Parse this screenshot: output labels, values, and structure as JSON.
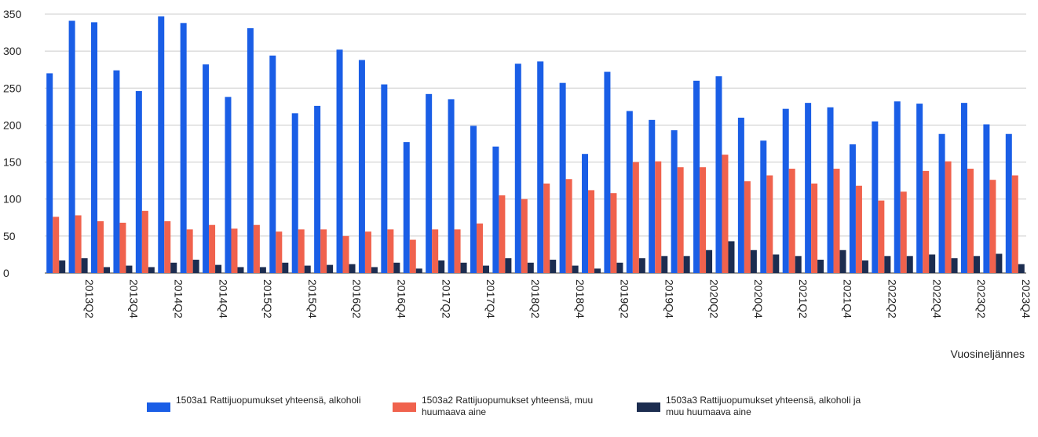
{
  "chart_data": {
    "type": "bar",
    "x_label": "Vuosineljännes",
    "categories": [
      null,
      "2013Q2",
      null,
      "2013Q4",
      null,
      "2014Q2",
      null,
      "2014Q4",
      null,
      "2015Q2",
      null,
      "2015Q4",
      null,
      "2016Q2",
      null,
      "2016Q4",
      null,
      "2017Q2",
      null,
      "2017Q4",
      null,
      "2018Q2",
      null,
      "2018Q4",
      null,
      "2019Q2",
      null,
      "2019Q4",
      null,
      "2020Q2",
      null,
      "2020Q4",
      null,
      "2021Q2",
      null,
      "2021Q4",
      null,
      "2022Q2",
      null,
      "2022Q4",
      null,
      "2023Q2",
      null,
      "2023Q4"
    ],
    "series": [
      {
        "name": "1503a1 Rattijuopumukset yhteensä, alkoholi",
        "color": "#1a5ee6",
        "values": [
          270,
          341,
          339,
          274,
          246,
          347,
          338,
          282,
          238,
          331,
          294,
          216,
          226,
          302,
          288,
          255,
          177,
          242,
          235,
          199,
          171,
          283,
          286,
          257,
          161,
          272,
          219,
          207,
          193,
          260,
          266,
          210,
          179,
          222,
          230,
          224,
          174,
          205,
          232,
          229,
          188,
          230,
          201,
          188
        ]
      },
      {
        "name": "1503a2 Rattijuopumukset yhteensä, muu huumaava aine",
        "color": "#f0624d",
        "values": [
          76,
          78,
          70,
          68,
          84,
          70,
          59,
          65,
          60,
          65,
          56,
          59,
          59,
          50,
          56,
          59,
          45,
          59,
          59,
          67,
          105,
          100,
          121,
          127,
          112,
          108,
          150,
          151,
          143,
          143,
          160,
          124,
          132,
          141,
          121,
          141,
          118,
          98,
          110,
          138,
          151,
          141,
          126,
          132
        ]
      },
      {
        "name": "1503a3 Rattijuopumukset yhteensä, alkoholi ja muu huumaava aine",
        "color": "#1c2d50",
        "values": [
          17,
          20,
          8,
          10,
          8,
          14,
          18,
          11,
          8,
          8,
          14,
          10,
          11,
          12,
          8,
          14,
          6,
          17,
          14,
          10,
          20,
          14,
          18,
          10,
          6,
          14,
          20,
          23,
          23,
          31,
          43,
          31,
          25,
          23,
          18,
          31,
          17,
          23,
          23,
          25,
          20,
          23,
          26,
          12
        ]
      }
    ],
    "ylim": [
      0,
      350
    ],
    "yticks": [
      0,
      50,
      100,
      150,
      200,
      250,
      300,
      350
    ],
    "grid": true
  }
}
